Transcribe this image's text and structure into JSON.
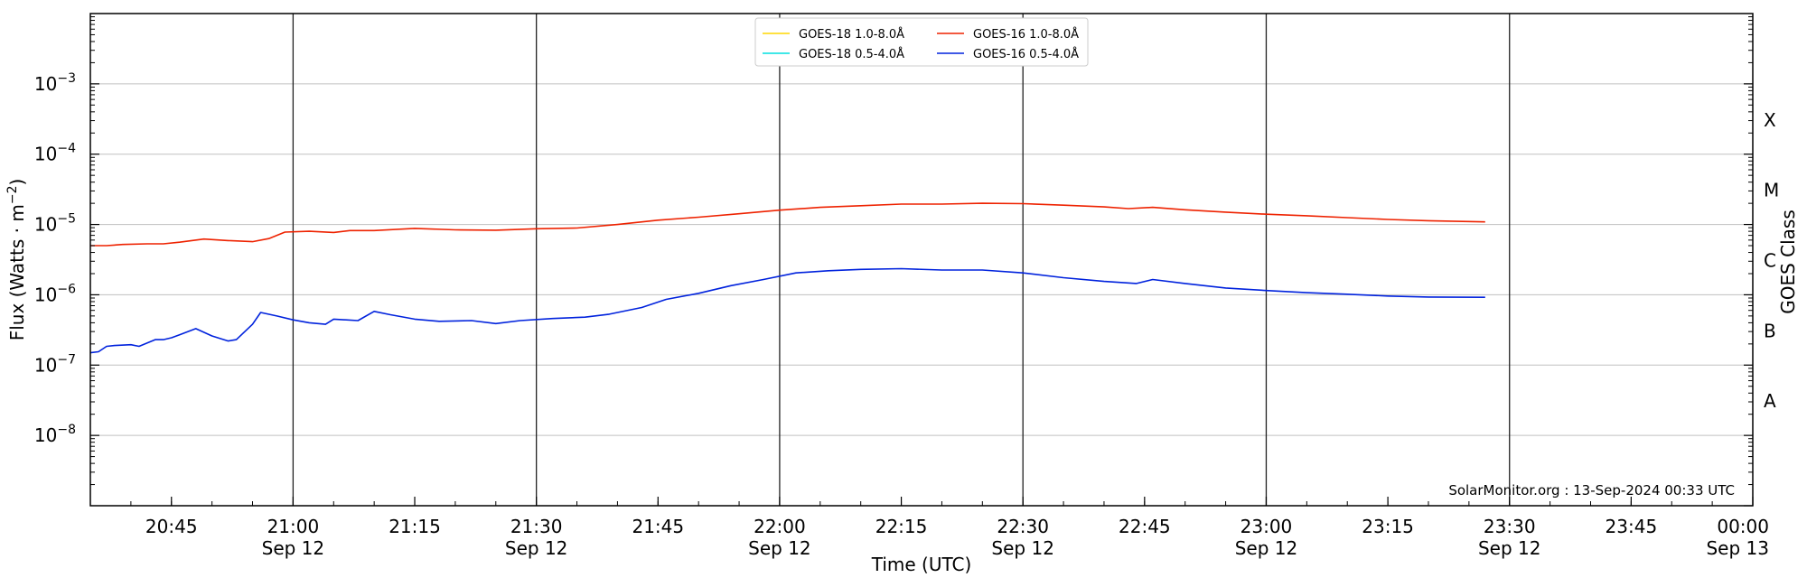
{
  "chart_data": {
    "type": "line",
    "xlabel": "Time (UTC)",
    "ylabel_main": "Flux (Watts · m",
    "ylabel_sup": "−2",
    "ylabel_end": ")",
    "y2label": "GOES Class",
    "yscale": "log",
    "ylim": [
      1e-09,
      0.01
    ],
    "xlim": [
      "2024-09-12 20:35",
      "2024-09-13 00:00"
    ],
    "grid": "horizontal at decades",
    "legend_position": "top-center",
    "y_ticks": [
      {
        "value": 1e-08,
        "base": "10",
        "exp": "−8"
      },
      {
        "value": 1e-07,
        "base": "10",
        "exp": "−7"
      },
      {
        "value": 1e-06,
        "base": "10",
        "exp": "−6"
      },
      {
        "value": 1e-05,
        "base": "10",
        "exp": "−5"
      },
      {
        "value": 0.0001,
        "base": "10",
        "exp": "−4"
      },
      {
        "value": 0.001,
        "base": "10",
        "exp": "−3"
      }
    ],
    "x_ticks": [
      {
        "time": "2024-09-12 20:45",
        "line1": "20:45",
        "line2": ""
      },
      {
        "time": "2024-09-12 21:00",
        "line1": "21:00",
        "line2": "Sep 12"
      },
      {
        "time": "2024-09-12 21:15",
        "line1": "21:15",
        "line2": ""
      },
      {
        "time": "2024-09-12 21:30",
        "line1": "21:30",
        "line2": "Sep 12"
      },
      {
        "time": "2024-09-12 21:45",
        "line1": "21:45",
        "line2": ""
      },
      {
        "time": "2024-09-12 22:00",
        "line1": "22:00",
        "line2": "Sep 12"
      },
      {
        "time": "2024-09-12 22:15",
        "line1": "22:15",
        "line2": ""
      },
      {
        "time": "2024-09-12 22:30",
        "line1": "22:30",
        "line2": "Sep 12"
      },
      {
        "time": "2024-09-12 22:45",
        "line1": "22:45",
        "line2": ""
      },
      {
        "time": "2024-09-12 23:00",
        "line1": "23:00",
        "line2": "Sep 12"
      },
      {
        "time": "2024-09-12 23:15",
        "line1": "23:15",
        "line2": ""
      },
      {
        "time": "2024-09-12 23:30",
        "line1": "23:30",
        "line2": "Sep 12"
      },
      {
        "time": "2024-09-12 23:45",
        "line1": "23:45",
        "line2": ""
      },
      {
        "time": "2024-09-13 00:00",
        "line1": "00:00",
        "line2": "Sep 13"
      }
    ],
    "vertical_lines": [
      "2024-09-12 21:00",
      "2024-09-12 21:30",
      "2024-09-12 22:00",
      "2024-09-12 22:30",
      "2024-09-12 23:00",
      "2024-09-12 23:30"
    ],
    "goes_classes": [
      {
        "label": "A",
        "value": 3.16e-08
      },
      {
        "label": "B",
        "value": 3.16e-07
      },
      {
        "label": "C",
        "value": 3.16e-06
      },
      {
        "label": "M",
        "value": 3.16e-05
      },
      {
        "label": "X",
        "value": 0.000316
      }
    ],
    "series": [
      {
        "name": "GOES-18 1.0-8.0Å",
        "color": "#ffd700",
        "x": [],
        "y": []
      },
      {
        "name": "GOES-16 1.0-8.0Å",
        "color": "#ee2200",
        "x": [
          "2024-09-12 20:35",
          "2024-09-12 20:37",
          "2024-09-12 20:39",
          "2024-09-12 20:42",
          "2024-09-12 20:44",
          "2024-09-12 20:46",
          "2024-09-12 20:49",
          "2024-09-12 20:52",
          "2024-09-12 20:55",
          "2024-09-12 20:57",
          "2024-09-12 20:59",
          "2024-09-12 21:02",
          "2024-09-12 21:05",
          "2024-09-12 21:07",
          "2024-09-12 21:10",
          "2024-09-12 21:15",
          "2024-09-12 21:20",
          "2024-09-12 21:25",
          "2024-09-12 21:30",
          "2024-09-12 21:35",
          "2024-09-12 21:40",
          "2024-09-12 21:45",
          "2024-09-12 21:50",
          "2024-09-12 21:55",
          "2024-09-12 22:00",
          "2024-09-12 22:05",
          "2024-09-12 22:10",
          "2024-09-12 22:15",
          "2024-09-12 22:20",
          "2024-09-12 22:25",
          "2024-09-12 22:30",
          "2024-09-12 22:35",
          "2024-09-12 22:40",
          "2024-09-12 22:43",
          "2024-09-12 22:46",
          "2024-09-12 22:50",
          "2024-09-12 22:55",
          "2024-09-12 23:00",
          "2024-09-12 23:05",
          "2024-09-12 23:10",
          "2024-09-12 23:15",
          "2024-09-12 23:20",
          "2024-09-12 23:27"
        ],
        "y": [
          5e-06,
          5e-06,
          5.2e-06,
          5.3e-06,
          5.3e-06,
          5.6e-06,
          6.2e-06,
          5.9e-06,
          5.7e-06,
          6.3e-06,
          7.8e-06,
          8e-06,
          7.7e-06,
          8.2e-06,
          8.2e-06,
          8.8e-06,
          8.4e-06,
          8.3e-06,
          8.7e-06,
          8.9e-06,
          1e-05,
          1.15e-05,
          1.27e-05,
          1.42e-05,
          1.6e-05,
          1.75e-05,
          1.85e-05,
          1.95e-05,
          1.95e-05,
          2e-05,
          1.98e-05,
          1.88e-05,
          1.78e-05,
          1.68e-05,
          1.75e-05,
          1.62e-05,
          1.5e-05,
          1.4e-05,
          1.33e-05,
          1.25e-05,
          1.18e-05,
          1.13e-05,
          1.09e-05
        ]
      },
      {
        "name": "GOES-18 0.5-4.0Å",
        "color": "#00e0e0",
        "x": [],
        "y": []
      },
      {
        "name": "GOES-16 0.5-4.0Å",
        "color": "#0022dd",
        "x": [
          "2024-09-12 20:35",
          "2024-09-12 20:36",
          "2024-09-12 20:37",
          "2024-09-12 20:38",
          "2024-09-12 20:40",
          "2024-09-12 20:41",
          "2024-09-12 20:43",
          "2024-09-12 20:44",
          "2024-09-12 20:45",
          "2024-09-12 20:46",
          "2024-09-12 20:48",
          "2024-09-12 20:50",
          "2024-09-12 20:52",
          "2024-09-12 20:53",
          "2024-09-12 20:55",
          "2024-09-12 20:56",
          "2024-09-12 20:58",
          "2024-09-12 21:00",
          "2024-09-12 21:02",
          "2024-09-12 21:04",
          "2024-09-12 21:05",
          "2024-09-12 21:08",
          "2024-09-12 21:10",
          "2024-09-12 21:12",
          "2024-09-12 21:15",
          "2024-09-12 21:18",
          "2024-09-12 21:22",
          "2024-09-12 21:25",
          "2024-09-12 21:28",
          "2024-09-12 21:32",
          "2024-09-12 21:36",
          "2024-09-12 21:39",
          "2024-09-12 21:43",
          "2024-09-12 21:46",
          "2024-09-12 21:50",
          "2024-09-12 21:54",
          "2024-09-12 21:58",
          "2024-09-12 22:02",
          "2024-09-12 22:06",
          "2024-09-12 22:10",
          "2024-09-12 22:15",
          "2024-09-12 22:20",
          "2024-09-12 22:25",
          "2024-09-12 22:30",
          "2024-09-12 22:35",
          "2024-09-12 22:40",
          "2024-09-12 22:44",
          "2024-09-12 22:46",
          "2024-09-12 22:50",
          "2024-09-12 22:55",
          "2024-09-12 23:00",
          "2024-09-12 23:05",
          "2024-09-12 23:10",
          "2024-09-12 23:15",
          "2024-09-12 23:20",
          "2024-09-12 23:27"
        ],
        "y": [
          1.5e-07,
          1.55e-07,
          1.85e-07,
          1.9e-07,
          1.95e-07,
          1.85e-07,
          2.3e-07,
          2.3e-07,
          2.45e-07,
          2.7e-07,
          3.3e-07,
          2.6e-07,
          2.2e-07,
          2.3e-07,
          3.8e-07,
          5.6e-07,
          5e-07,
          4.4e-07,
          4e-07,
          3.8e-07,
          4.5e-07,
          4.3e-07,
          5.8e-07,
          5.2e-07,
          4.5e-07,
          4.2e-07,
          4.3e-07,
          3.9e-07,
          4.3e-07,
          4.6e-07,
          4.8e-07,
          5.3e-07,
          6.6e-07,
          8.6e-07,
          1.05e-06,
          1.35e-06,
          1.65e-06,
          2.05e-06,
          2.2e-06,
          2.3e-06,
          2.35e-06,
          2.25e-06,
          2.25e-06,
          2.05e-06,
          1.75e-06,
          1.55e-06,
          1.45e-06,
          1.65e-06,
          1.45e-06,
          1.25e-06,
          1.15e-06,
          1.07e-06,
          1.02e-06,
          9.6e-07,
          9.3e-07,
          9.2e-07
        ]
      }
    ]
  },
  "credit": "SolarMonitor.org : 13-Sep-2024 00:33 UTC"
}
